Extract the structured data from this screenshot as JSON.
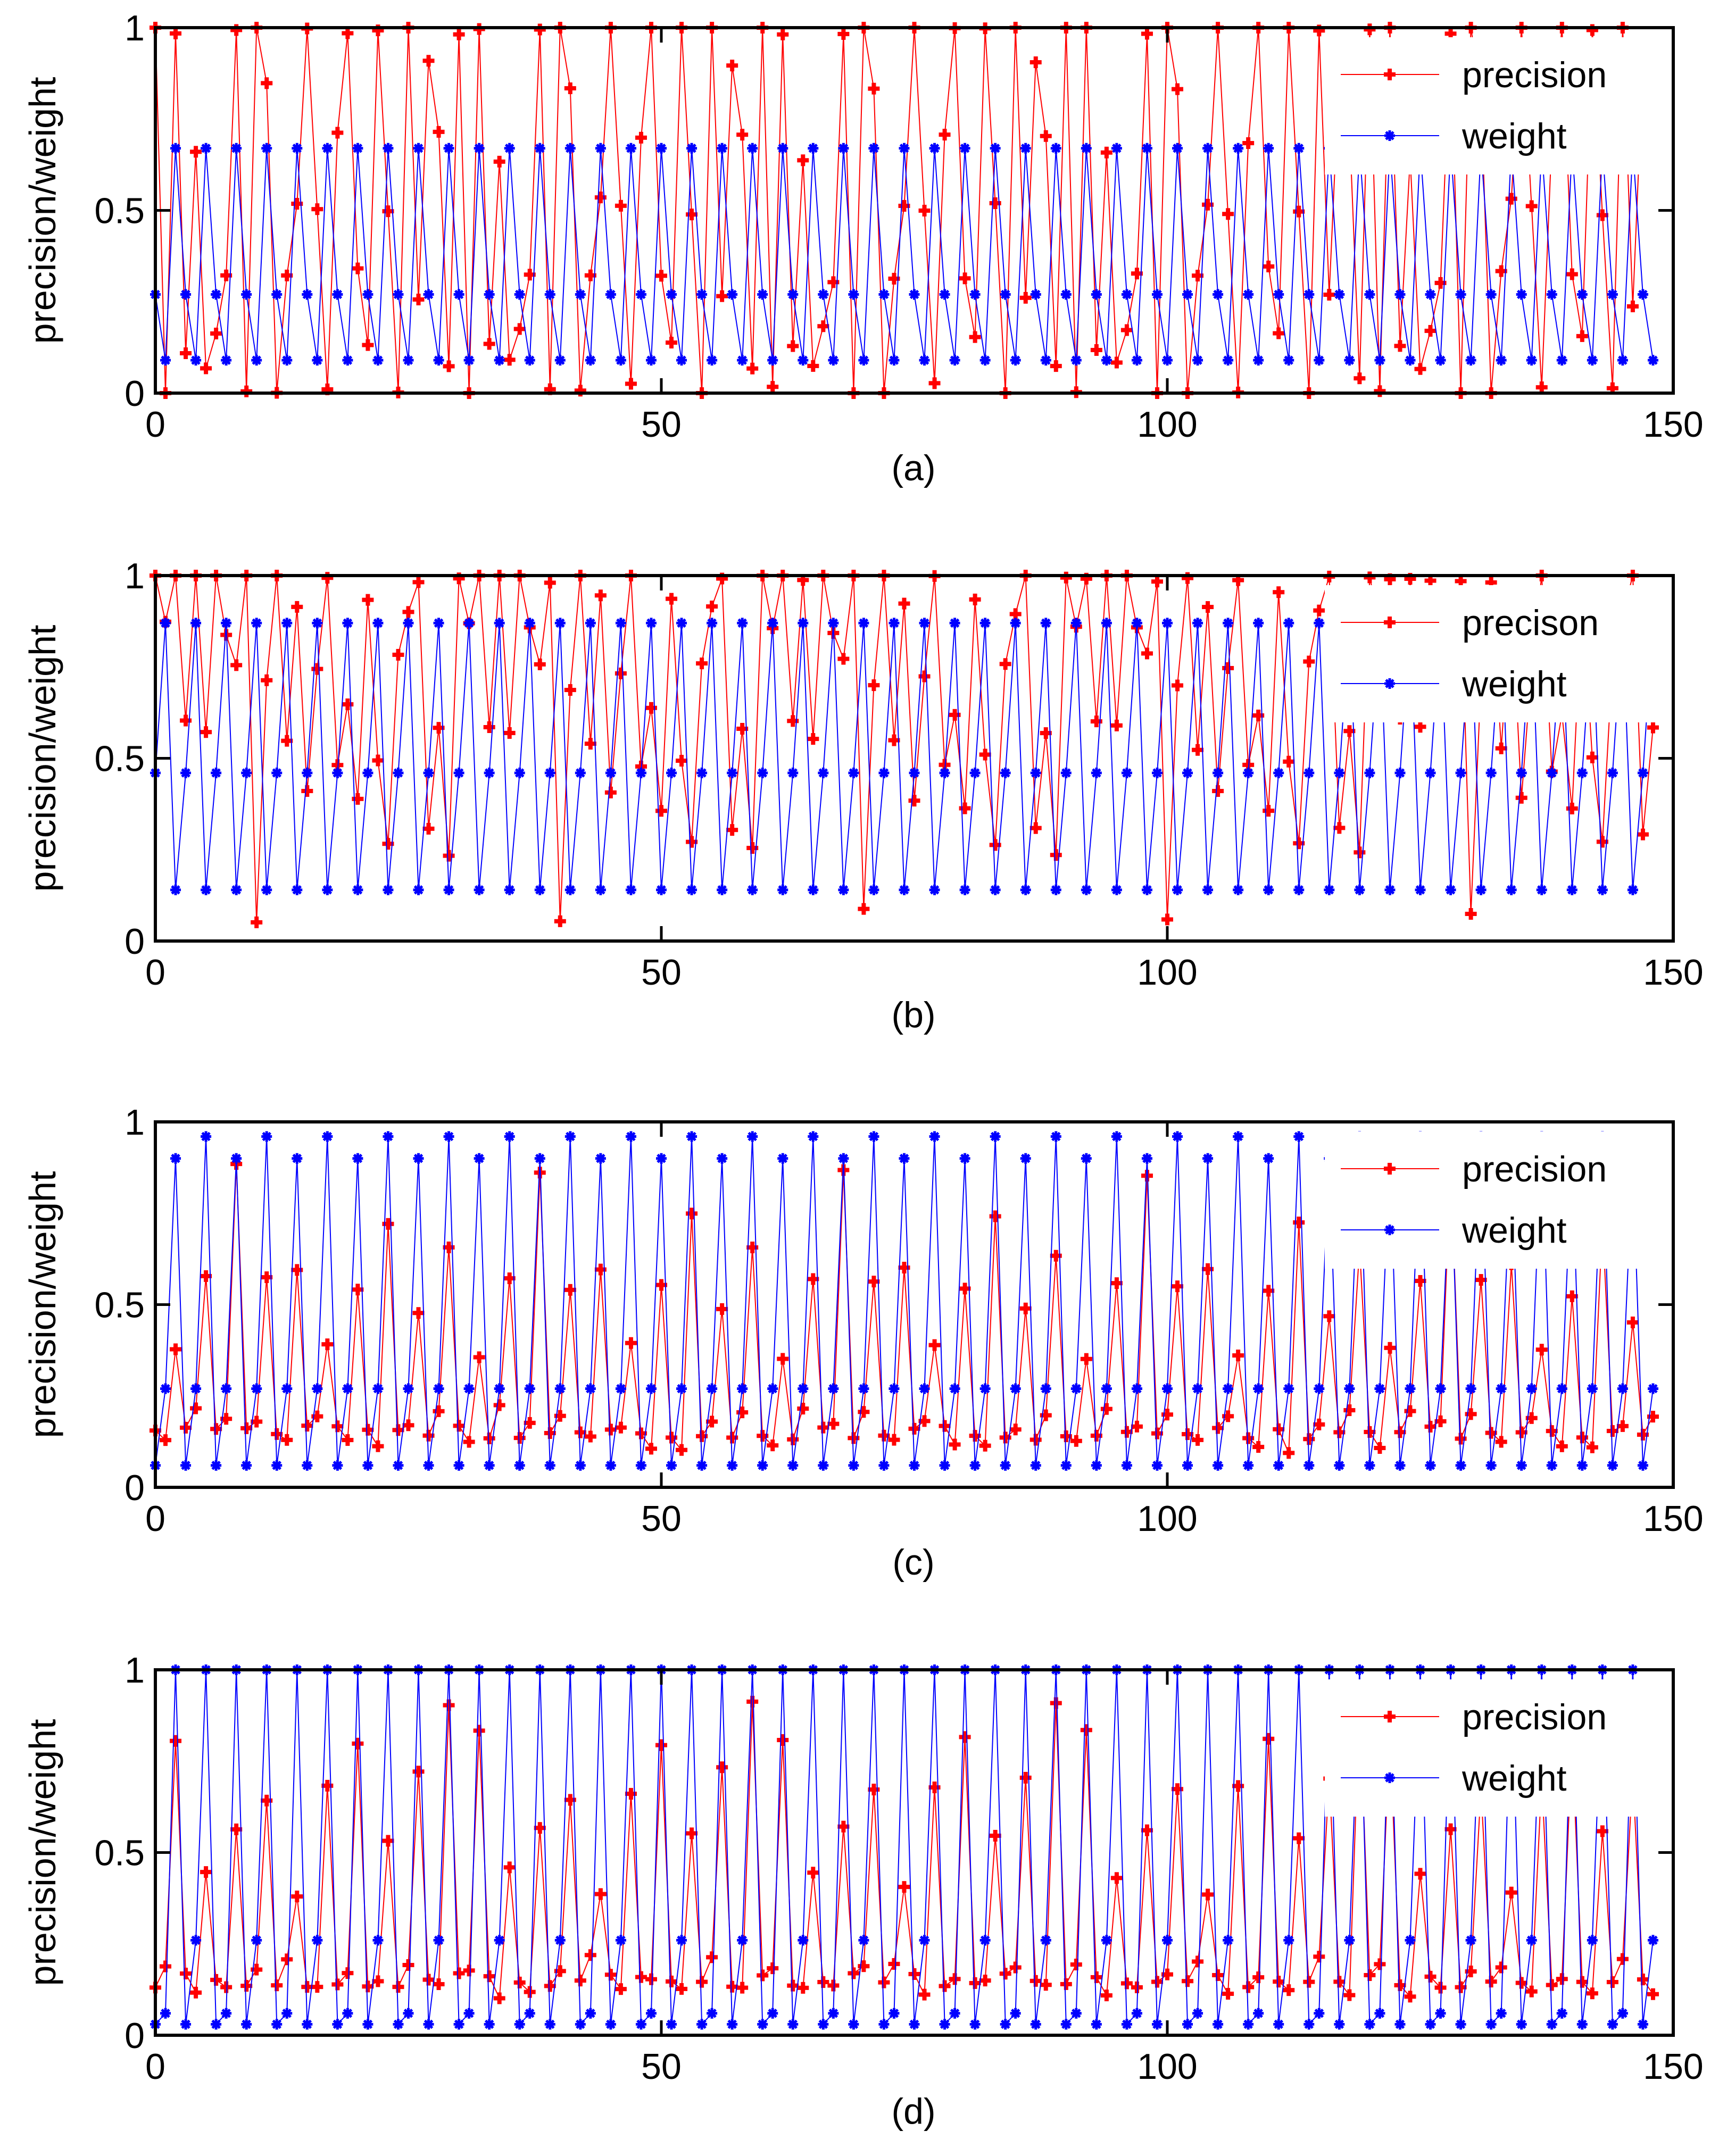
{
  "figure": {
    "colors": {
      "precision": "#ff0000",
      "weight": "#0000ff",
      "axes": "#000000"
    }
  },
  "chart_data": [
    {
      "type": "line",
      "caption": "(a)",
      "ylabel": "precision/weight",
      "xlim": [
        0,
        150
      ],
      "ylim": [
        0,
        1
      ],
      "xticks": [
        0,
        50,
        100,
        150
      ],
      "yticks": [
        0,
        0.5,
        1
      ],
      "xticklabels": [
        "0",
        "50",
        "100",
        "150"
      ],
      "yticklabels": [
        "0",
        "0.5",
        "1"
      ],
      "legend_position": "top-right",
      "series": [
        {
          "name": "precision",
          "color": "#ff0000",
          "marker": "plus",
          "pattern": [
            1,
            0,
            1,
            0.12,
            0.65,
            0.08,
            0.17,
            0.31,
            1,
            0,
            1,
            0.83,
            0,
            0.33,
            0.52,
            1,
            0.5,
            0.02,
            0.7,
            1,
            0.33,
            0.15,
            1,
            0.5,
            0,
            1,
            0.25,
            0.9,
            0.72,
            0.06
          ],
          "seed": 11
        },
        {
          "name": "weight",
          "color": "#0000ff",
          "marker": "star",
          "pattern": [
            0.27,
            0.09,
            0.67,
            0.27,
            0.09,
            0.67
          ],
          "seed": 0
        }
      ]
    },
    {
      "type": "line",
      "caption": "(b)",
      "ylabel": "precision/weight",
      "xlim": [
        0,
        150
      ],
      "ylim": [
        0,
        1
      ],
      "xticks": [
        0,
        50,
        100,
        150
      ],
      "yticks": [
        0,
        0.5,
        1
      ],
      "xticklabels": [
        "0",
        "50",
        "100",
        "150"
      ],
      "yticklabels": [
        "0",
        "0.5",
        "1"
      ],
      "legend_position": "top-right",
      "series": [
        {
          "name": "precison",
          "color": "#ff0000",
          "marker": "plus",
          "pattern": [
            1,
            0.86,
            1,
            0.6,
            1,
            0.57,
            1,
            0.84,
            0.77,
            1,
            0.07,
            0.7,
            1,
            0.54,
            0.93,
            0.4,
            0.73,
            1,
            0.47,
            0.63,
            0.37,
            0.94,
            0.5,
            0.27,
            0.77,
            0.9,
            1,
            0.3,
            0.57,
            0.24
          ],
          "seed": 23
        },
        {
          "name": "weight",
          "color": "#0000ff",
          "marker": "star",
          "pattern": [
            0.46,
            0.87,
            0.14,
            0.46,
            0.87,
            0.14
          ],
          "seed": 0
        }
      ]
    },
    {
      "type": "line",
      "caption": "(c)",
      "ylabel": "precision/weight",
      "xlim": [
        0,
        150
      ],
      "ylim": [
        0,
        1
      ],
      "xticks": [
        0,
        50,
        100,
        150
      ],
      "yticks": [
        0,
        0.5,
        1
      ],
      "xticklabels": [
        "0",
        "50",
        "100",
        "150"
      ],
      "yticklabels": [
        "0",
        "0.5",
        "1"
      ],
      "legend_position": "top-right",
      "series": [
        {
          "name": "precision",
          "color": "#ff0000",
          "marker": "plus",
          "pattern": [
            0.15,
            0.11,
            0.37,
            0.15,
            0.22,
            0.56,
            0.15,
            0.18,
            0.87,
            0.15,
            0.19,
            0.56,
            0.15,
            0.13,
            0.6,
            0.15,
            0.18,
            0.38,
            0.15,
            0.12,
            0.54,
            0.15,
            0.11,
            0.74,
            0.15,
            0.16,
            0.47,
            0.15,
            0.2,
            0.64
          ],
          "seed": 37
        },
        {
          "name": "weight",
          "color": "#0000ff",
          "marker": "star",
          "pattern": [
            0.06,
            0.27,
            0.9,
            0.06,
            0.27,
            0.96
          ],
          "seed": 0
        }
      ]
    },
    {
      "type": "line",
      "caption": "(d)",
      "ylabel": "precision/weight",
      "xlim": [
        0,
        150
      ],
      "ylim": [
        0,
        1
      ],
      "xticks": [
        0,
        50,
        100,
        150
      ],
      "yticks": [
        0,
        0.5,
        1
      ],
      "xticklabels": [
        "0",
        "50",
        "100",
        "150"
      ],
      "yticklabels": [
        "0",
        "0.5",
        "1"
      ],
      "legend_position": "top-right",
      "series": [
        {
          "name": "precision",
          "color": "#ff0000",
          "marker": "plus",
          "pattern": [
            0.15,
            0.18,
            0.82,
            0.15,
            0.12,
            0.45,
            0.15,
            0.13,
            0.56,
            0.15,
            0.18,
            0.66,
            0.15,
            0.2,
            0.39,
            0.15,
            0.13,
            0.68,
            0.15,
            0.17,
            0.8,
            0.15,
            0.13,
            0.54,
            0.15,
            0.2,
            0.72,
            0.15,
            0.12,
            0.9
          ],
          "seed": 53
        },
        {
          "name": "weight",
          "color": "#0000ff",
          "marker": "star",
          "pattern": [
            0.03,
            0.06,
            1,
            0.03,
            0.26,
            1
          ],
          "seed": 0
        }
      ]
    }
  ]
}
